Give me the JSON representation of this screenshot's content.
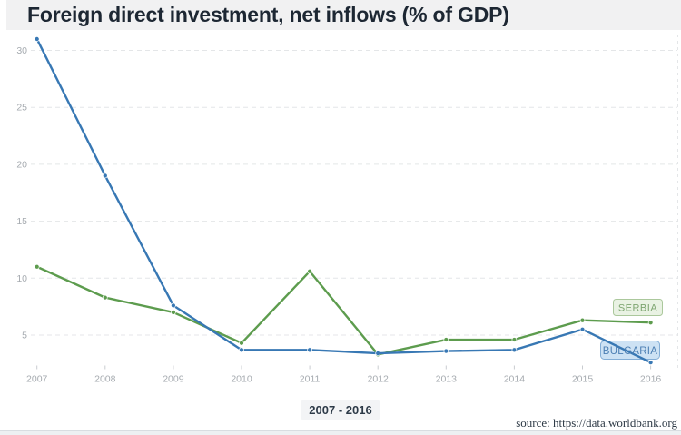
{
  "header": {
    "title": "Foreign direct investment, net inflows (% of GDP)"
  },
  "footer": {
    "range_label": "2007 - 2016",
    "source": "source: https://data.worldbank.org"
  },
  "chart_data": {
    "type": "line",
    "title": "Foreign direct investment, net inflows (% of GDP)",
    "x": [
      2007,
      2008,
      2009,
      2010,
      2011,
      2012,
      2013,
      2014,
      2015,
      2016
    ],
    "xlabel": "",
    "ylabel": "% of GDP",
    "ylim": [
      0,
      32
    ],
    "yticks": [
      5,
      10,
      15,
      20,
      25,
      30
    ],
    "grid": "horizontal dashed, light gray; dashed vertical line at right plot edge",
    "legend_position": "inline pills at right end of each line",
    "series": [
      {
        "name": "SERBIA",
        "color": "#5d9c4e",
        "values": [
          11.0,
          8.3,
          7.0,
          4.3,
          10.6,
          3.3,
          4.6,
          4.6,
          6.3,
          6.1
        ]
      },
      {
        "name": "BULGARIA",
        "color": "#3878b4",
        "values": [
          31.0,
          19.0,
          7.6,
          3.7,
          3.7,
          3.4,
          3.6,
          3.7,
          5.5,
          2.6
        ]
      }
    ],
    "legend": {
      "serbia": {
        "label": "SERBIA",
        "bg": "#e9f2e3",
        "border": "#abc89c",
        "text_color": "#7da570"
      },
      "bulgaria": {
        "label": "BULGARIA",
        "bg": "#cde2f4",
        "border": "#84aed6",
        "text_color": "#4c7fb3"
      }
    },
    "axis_colors": {
      "tick_text": "#a6abb0",
      "gridline": "#e4e6e8",
      "tick_mark": "#c9ccd0"
    }
  },
  "colors": {
    "header_bg": "#f1f1f2",
    "title_text": "#1d2733",
    "serbia_line": "#5d9c4e",
    "bulgaria_line": "#3878b4"
  }
}
